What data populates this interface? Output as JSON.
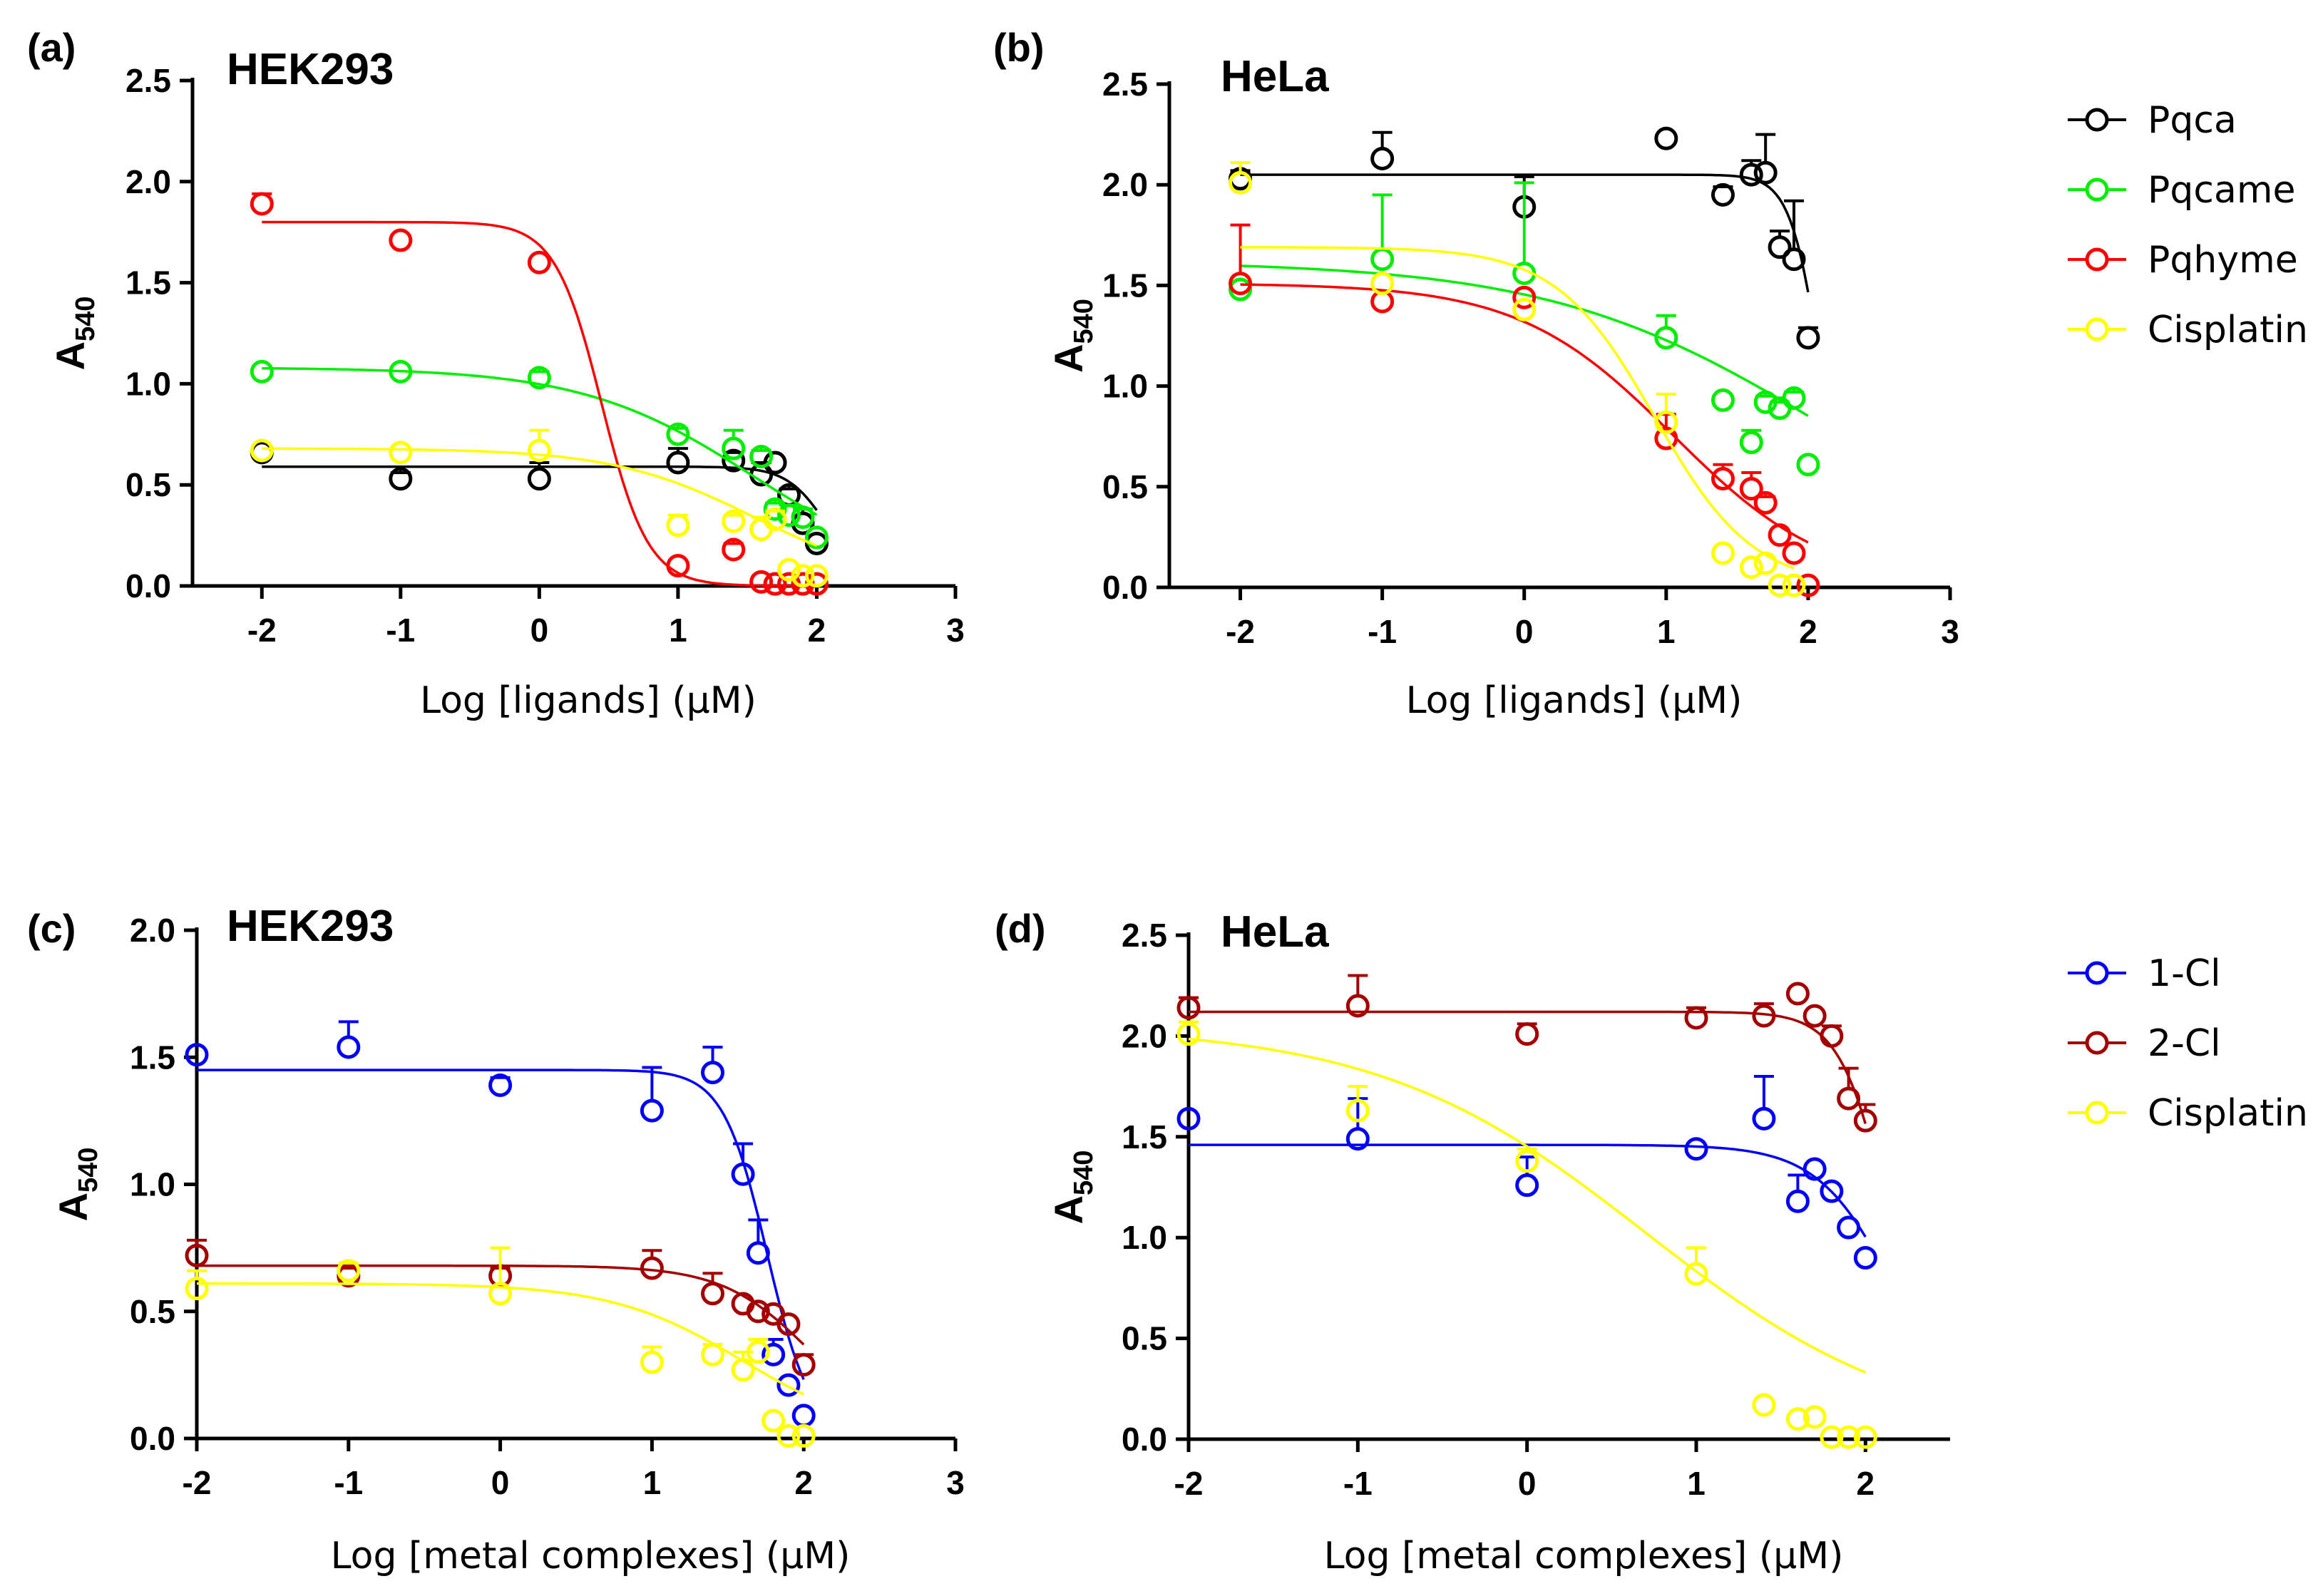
{
  "chart_data": [
    {
      "type": "scatter",
      "panel_label": "(a)",
      "title": "HEK293",
      "xlabel": "Log [ligands] (μM)",
      "ylabel_main": "A",
      "ylabel_sub": "540",
      "xlim": [
        -2.5,
        3
      ],
      "ylim": [
        0,
        2.5
      ],
      "xticks": [
        -2,
        -1,
        0,
        1,
        2,
        3
      ],
      "yticks": [
        0.0,
        0.5,
        1.0,
        1.5,
        2.0,
        2.5
      ],
      "xtick_labels": [
        "-2",
        "-1",
        "0",
        "1",
        "2",
        "3"
      ],
      "ytick_labels": [
        "0.0",
        "0.5",
        "1.0",
        "1.5",
        "2.0",
        "2.5"
      ],
      "series": [
        {
          "name": "Pqca",
          "color": "#000000",
          "points": [
            [
              -2,
              0.66,
              0.02
            ],
            [
              -1,
              0.53,
              0.03
            ],
            [
              0,
              0.53,
              0.08
            ],
            [
              1,
              0.61,
              0.07
            ],
            [
              1.4,
              0.62,
              0.04
            ],
            [
              1.6,
              0.55,
              0.06
            ],
            [
              1.7,
              0.61,
              0.02
            ],
            [
              1.8,
              0.45,
              0.03
            ],
            [
              1.9,
              0.31,
              0.07
            ],
            [
              2,
              0.21,
              0.02
            ]
          ],
          "fit": {
            "top": 0.59,
            "bottom": 0.0,
            "logIC50": 2.08,
            "hill": 3.0
          }
        },
        {
          "name": "Pqcame",
          "color": "#00ee00",
          "points": [
            [
              -2,
              1.06,
              0.02
            ],
            [
              -1,
              1.06,
              0.02
            ],
            [
              0,
              1.03,
              0.03
            ],
            [
              1,
              0.75,
              0.03
            ],
            [
              1.4,
              0.68,
              0.09
            ],
            [
              1.6,
              0.64,
              0.03
            ],
            [
              1.7,
              0.38,
              0.03
            ],
            [
              1.8,
              0.35,
              0.05
            ],
            [
              1.9,
              0.34,
              0.04
            ],
            [
              2,
              0.24,
              0.02
            ]
          ],
          "fit": {
            "top": 1.08,
            "bottom": 0.0,
            "logIC50": 1.55,
            "hill": 0.7
          }
        },
        {
          "name": "Pqhyme",
          "color": "#ff0000",
          "points": [
            [
              -2,
              1.89,
              0.05
            ],
            [
              -1,
              1.71,
              0.02
            ],
            [
              0,
              1.6,
              0.02
            ],
            [
              1,
              0.1,
              0.02
            ],
            [
              1.4,
              0.18,
              0.03
            ],
            [
              1.6,
              0.02,
              0.01
            ],
            [
              1.7,
              0.01,
              0.01
            ],
            [
              1.8,
              0.01,
              0.01
            ],
            [
              1.9,
              0.01,
              0.01
            ],
            [
              2,
              0.01,
              0.01
            ]
          ],
          "fit": {
            "top": 1.8,
            "bottom": 0.0,
            "logIC50": 0.45,
            "hill": 2.6
          }
        },
        {
          "name": "Cisplatin",
          "color": "#ffff00",
          "points": [
            [
              -2,
              0.67,
              0.02
            ],
            [
              -1,
              0.66,
              0.02
            ],
            [
              0,
              0.67,
              0.1
            ],
            [
              1,
              0.3,
              0.05
            ],
            [
              1.4,
              0.32,
              0.03
            ],
            [
              1.6,
              0.28,
              0.06
            ],
            [
              1.7,
              0.33,
              0.04
            ],
            [
              1.8,
              0.08,
              0.02
            ],
            [
              1.9,
              0.05,
              0.02
            ],
            [
              2,
              0.05,
              0.02
            ]
          ],
          "fit": {
            "top": 0.68,
            "bottom": 0.0,
            "logIC50": 1.55,
            "hill": 0.85
          }
        }
      ]
    },
    {
      "type": "scatter",
      "panel_label": "(b)",
      "title": "HeLa",
      "xlabel": "Log [ligands] (μM)",
      "ylabel_main": "A",
      "ylabel_sub": "540",
      "xlim": [
        -2.5,
        3
      ],
      "ylim": [
        0,
        2.5
      ],
      "xticks": [
        -2,
        -1,
        0,
        1,
        2,
        3
      ],
      "yticks": [
        0.0,
        0.5,
        1.0,
        1.5,
        2.0,
        2.5
      ],
      "xtick_labels": [
        "-2",
        "-1",
        "0",
        "1",
        "2",
        "3"
      ],
      "ytick_labels": [
        "0.0",
        "0.5",
        "1.0",
        "1.5",
        "2.0",
        "2.5"
      ],
      "series": [
        {
          "name": "Pqca",
          "color": "#000000",
          "points": [
            [
              -2,
              2.03,
              0.04
            ],
            [
              -1,
              2.13,
              0.13
            ],
            [
              0,
              1.89,
              0.15
            ],
            [
              1,
              2.23,
              0.01
            ],
            [
              1.4,
              1.95,
              0.04
            ],
            [
              1.6,
              2.05,
              0.07
            ],
            [
              1.7,
              2.06,
              0.19
            ],
            [
              1.8,
              1.69,
              0.08
            ],
            [
              1.9,
              1.63,
              0.29
            ],
            [
              2,
              1.24,
              0.05
            ]
          ],
          "fit": {
            "top": 2.05,
            "bottom": 0.0,
            "logIC50": 2.1,
            "hill": 4.0
          }
        },
        {
          "name": "Pqcame",
          "color": "#00ee00",
          "points": [
            [
              -2,
              1.48,
              0.02
            ],
            [
              -1,
              1.63,
              0.32
            ],
            [
              0,
              1.56,
              0.45
            ],
            [
              1,
              1.24,
              0.11
            ],
            [
              1.4,
              0.93,
              0.02
            ],
            [
              1.6,
              0.72,
              0.06
            ],
            [
              1.7,
              0.92,
              0.03
            ],
            [
              1.8,
              0.89,
              0.03
            ],
            [
              1.9,
              0.94,
              0.03
            ],
            [
              2,
              0.61,
              0.02
            ]
          ],
          "fit": {
            "top": 1.62,
            "bottom": 0.0,
            "logIC50": 2.1,
            "hill": 0.45
          }
        },
        {
          "name": "Pqhyme",
          "color": "#ff0000",
          "points": [
            [
              -2,
              1.51,
              0.29
            ],
            [
              -1,
              1.42,
              0.02
            ],
            [
              0,
              1.44,
              0.02
            ],
            [
              1,
              0.74,
              0.12
            ],
            [
              1.4,
              0.54,
              0.07
            ],
            [
              1.6,
              0.49,
              0.08
            ],
            [
              1.7,
              0.42,
              0.03
            ],
            [
              1.8,
              0.26,
              0.02
            ],
            [
              1.9,
              0.17,
              0.02
            ],
            [
              2,
              0.01,
              0.01
            ]
          ],
          "fit": {
            "top": 1.51,
            "bottom": 0.0,
            "logIC50": 1.05,
            "hill": 0.8
          }
        },
        {
          "name": "Cisplatin",
          "color": "#ffff00",
          "points": [
            [
              -2,
              2.01,
              0.1
            ],
            [
              -1,
              1.51,
              0.02
            ],
            [
              0,
              1.38,
              0.02
            ],
            [
              1,
              0.82,
              0.14
            ],
            [
              1.4,
              0.17,
              0.02
            ],
            [
              1.6,
              0.1,
              0.02
            ],
            [
              1.7,
              0.12,
              0.02
            ],
            [
              1.8,
              0.01,
              0.01
            ],
            [
              1.9,
              0.01,
              0.01
            ]
          ],
          "fit": {
            "top": 1.69,
            "bottom": 0.0,
            "logIC50": 0.92,
            "hill": 1.25
          }
        }
      ],
      "legend": [
        "Pqca",
        "Pqcame",
        "Pqhyme",
        "Cisplatin"
      ]
    },
    {
      "type": "scatter",
      "panel_label": "(c)",
      "title": "HEK293",
      "xlabel": "Log [metal complexes] (μM)",
      "ylabel_main": "A",
      "ylabel_sub": "540",
      "xlim": [
        -2,
        3
      ],
      "ylim": [
        0,
        2.0
      ],
      "xticks": [
        -2,
        -1,
        0,
        1,
        2,
        3
      ],
      "yticks": [
        0.0,
        0.5,
        1.0,
        1.5,
        2.0
      ],
      "xtick_labels": [
        "-2",
        "-1",
        "0",
        "1",
        "2",
        "3"
      ],
      "ytick_labels": [
        "0.0",
        "0.5",
        "1.0",
        "1.5",
        "2.0"
      ],
      "series": [
        {
          "name": "1-Cl",
          "color": "#0000ff",
          "points": [
            [
              -2,
              1.51,
              0.02
            ],
            [
              -1,
              1.54,
              0.1
            ],
            [
              0,
              1.39,
              0.03
            ],
            [
              1,
              1.29,
              0.17
            ],
            [
              1.4,
              1.44,
              0.1
            ],
            [
              1.6,
              1.04,
              0.12
            ],
            [
              1.7,
              0.73,
              0.13
            ],
            [
              1.8,
              0.33,
              0.06
            ],
            [
              1.9,
              0.21,
              0.02
            ],
            [
              2,
              0.09,
              0.02
            ]
          ],
          "fit": {
            "top": 1.45,
            "bottom": 0.0,
            "logIC50": 1.76,
            "hill": 3.0
          }
        },
        {
          "name": "2-Cl",
          "color": "#a50000",
          "points": [
            [
              -2,
              0.72,
              0.06
            ],
            [
              -1,
              0.64,
              0.03
            ],
            [
              0,
              0.64,
              0.03
            ],
            [
              1,
              0.67,
              0.07
            ],
            [
              1.4,
              0.57,
              0.08
            ],
            [
              1.6,
              0.53,
              0.02
            ],
            [
              1.7,
              0.5,
              0.02
            ],
            [
              1.8,
              0.49,
              0.02
            ],
            [
              1.9,
              0.45,
              0.02
            ],
            [
              2,
              0.29,
              0.04
            ]
          ],
          "fit": {
            "top": 0.68,
            "bottom": 0.0,
            "logIC50": 2.05,
            "hill": 1.5
          }
        },
        {
          "name": "Cisplatin",
          "color": "#ffff00",
          "points": [
            [
              -2,
              0.59,
              0.07
            ],
            [
              -1,
              0.66,
              0.03
            ],
            [
              0,
              0.57,
              0.18
            ],
            [
              1,
              0.3,
              0.06
            ],
            [
              1.4,
              0.33,
              0.04
            ],
            [
              1.6,
              0.27,
              0.07
            ],
            [
              1.7,
              0.34,
              0.05
            ],
            [
              1.8,
              0.07,
              0.02
            ],
            [
              1.9,
              0.01,
              0.01
            ],
            [
              2,
              0.01,
              0.01
            ]
          ],
          "fit": {
            "top": 0.61,
            "bottom": 0.0,
            "logIC50": 1.6,
            "hill": 1.0
          }
        }
      ]
    },
    {
      "type": "scatter",
      "panel_label": "(d)",
      "title": "HeLa",
      "xlabel": "Log [metal complexes] (μM)",
      "ylabel_main": "A",
      "ylabel_sub": "540",
      "xlim": [
        -2,
        2.5
      ],
      "ylim": [
        0,
        2.5
      ],
      "xticks": [
        -2,
        -1,
        0,
        1,
        2
      ],
      "yticks": [
        0.0,
        0.5,
        1.0,
        1.5,
        2.0,
        2.5
      ],
      "xtick_labels": [
        "-2",
        "-1",
        "0",
        "1",
        "2"
      ],
      "ytick_labels": [
        "0.0",
        "0.5",
        "1.0",
        "1.5",
        "2.0",
        "2.5"
      ],
      "series": [
        {
          "name": "1-Cl",
          "color": "#0000ff",
          "points": [
            [
              -2,
              1.59,
              0.02
            ],
            [
              -1,
              1.49,
              0.2
            ],
            [
              0,
              1.26,
              0.14
            ],
            [
              1,
              1.44,
              0.02
            ],
            [
              1.4,
              1.59,
              0.21
            ],
            [
              1.6,
              1.18,
              0.13
            ],
            [
              1.7,
              1.34,
              0.02
            ],
            [
              1.8,
              1.23,
              0.02
            ],
            [
              1.9,
              1.05,
              0.02
            ],
            [
              2,
              0.9,
              0.02
            ]
          ],
          "fit": {
            "top": 1.46,
            "bottom": 0.0,
            "logIC50": 2.18,
            "hill": 1.9
          }
        },
        {
          "name": "2-Cl",
          "color": "#a50000",
          "points": [
            [
              -2,
              2.14,
              0.05
            ],
            [
              -1,
              2.15,
              0.15
            ],
            [
              0,
              2.01,
              0.05
            ],
            [
              1,
              2.09,
              0.05
            ],
            [
              1.4,
              2.1,
              0.06
            ],
            [
              1.6,
              2.21,
              0.02
            ],
            [
              1.7,
              2.1,
              0.02
            ],
            [
              1.8,
              2.0,
              0.05
            ],
            [
              1.9,
              1.69,
              0.15
            ],
            [
              2,
              1.58,
              0.08
            ]
          ],
          "fit": {
            "top": 2.12,
            "bottom": 0.0,
            "logIC50": 2.15,
            "hill": 3.0
          }
        },
        {
          "name": "Cisplatin",
          "color": "#ffff00",
          "points": [
            [
              -2,
              2.01,
              0.06
            ],
            [
              -1,
              1.63,
              0.12
            ],
            [
              0,
              1.38,
              0.06
            ],
            [
              1,
              0.82,
              0.13
            ],
            [
              1.4,
              0.17,
              0.02
            ],
            [
              1.6,
              0.1,
              0.02
            ],
            [
              1.7,
              0.11,
              0.02
            ],
            [
              1.8,
              0.01,
              0.01
            ],
            [
              1.9,
              0.01,
              0.01
            ],
            [
              2,
              0.01,
              0.01
            ]
          ],
          "fit": {
            "top": 2.05,
            "bottom": 0.0,
            "logIC50": 0.7,
            "hill": 0.55
          }
        }
      ],
      "legend": [
        "1-Cl",
        "2-Cl",
        "Cisplatin"
      ]
    }
  ]
}
